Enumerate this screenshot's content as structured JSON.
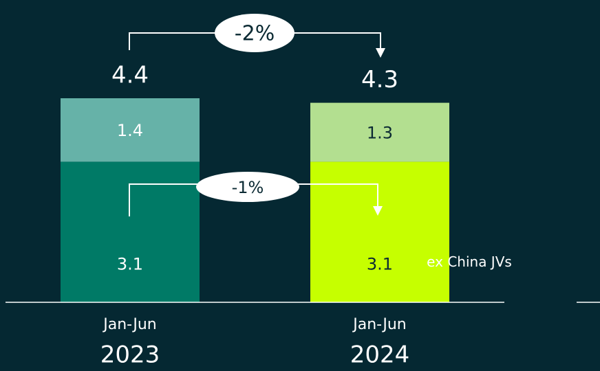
{
  "chart_data": {
    "type": "stacked_bar",
    "categories": [
      "2023",
      "2024"
    ],
    "period_labels": [
      "Jan-Jun",
      "Jan-Jun"
    ],
    "series": [
      {
        "name": "ex China JVs",
        "colors": [
          "#007a66",
          "#c6ff00"
        ],
        "label_colors": [
          "#ffffff",
          "#0b2a33"
        ],
        "values": [
          3.1,
          3.1
        ]
      },
      {
        "colors": [
          "#66b2a8",
          "#b3df90"
        ],
        "label_colors": [
          "#ffffff",
          "#0b2a33"
        ],
        "values": [
          1.4,
          1.3
        ]
      }
    ],
    "totals": [
      4.4,
      4.3
    ],
    "annotations": [
      {
        "text": "-2%"
      },
      {
        "text": "-1%"
      }
    ]
  }
}
